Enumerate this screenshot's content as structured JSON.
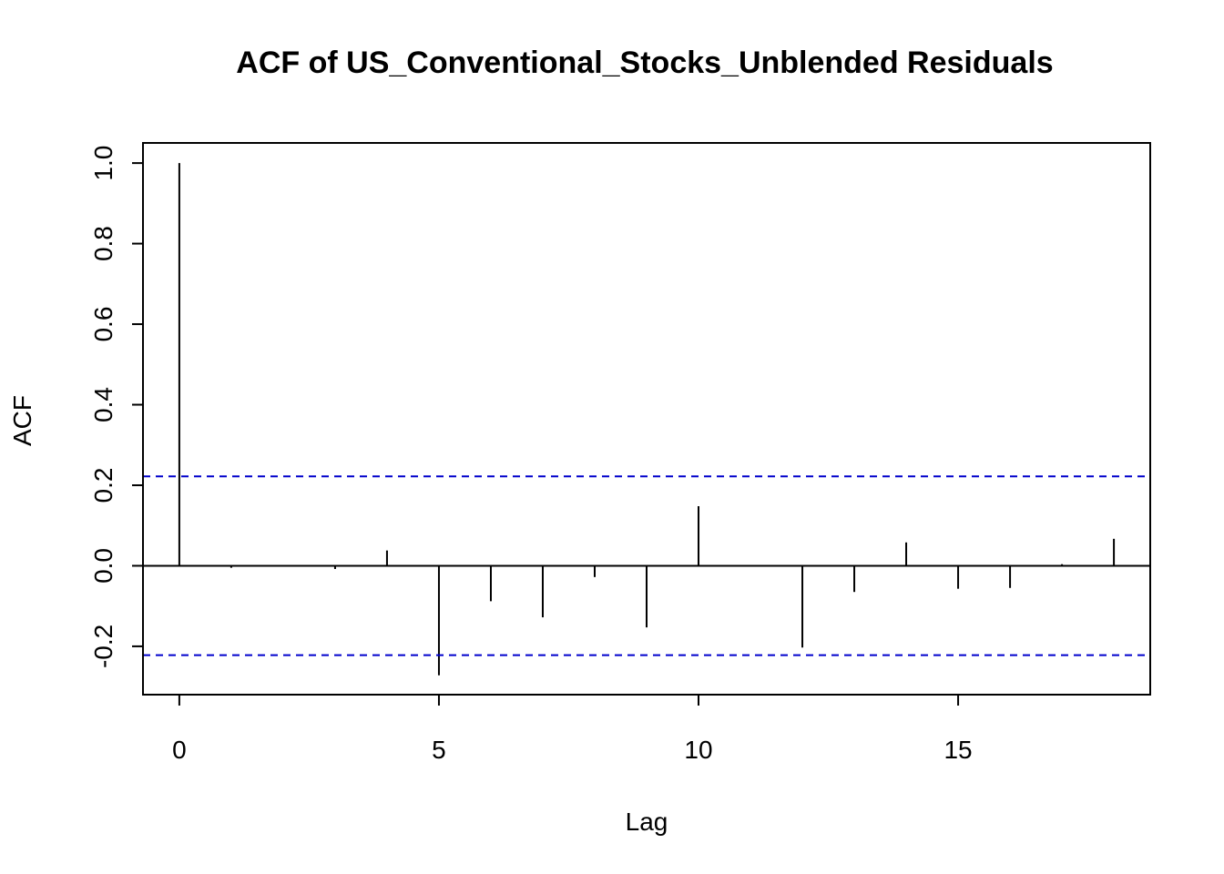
{
  "chart_data": {
    "type": "bar",
    "title": "ACF of US_Conventional_Stocks_Unblended Residuals",
    "xlabel": "Lag",
    "ylabel": "ACF",
    "x": [
      0,
      1,
      2,
      3,
      4,
      5,
      6,
      7,
      8,
      9,
      10,
      11,
      12,
      13,
      14,
      15,
      16,
      17,
      18
    ],
    "values": [
      1.0,
      -0.005,
      0.0,
      -0.008,
      0.038,
      -0.272,
      -0.088,
      -0.128,
      -0.028,
      -0.153,
      0.148,
      0.0,
      -0.203,
      -0.065,
      0.058,
      -0.057,
      -0.055,
      0.004,
      0.067
    ],
    "confidence_bounds": [
      0.222,
      -0.222
    ],
    "xlim": [
      -0.7,
      18.7
    ],
    "ylim": [
      -0.32,
      1.05
    ],
    "x_ticks": [
      "0",
      "5",
      "10",
      "15"
    ],
    "y_ticks": [
      "-0.2",
      "0.0",
      "0.2",
      "0.4",
      "0.6",
      "0.8",
      "1.0"
    ],
    "bounds_color": "#0000cc",
    "bar_color": "#000000",
    "grid": false,
    "legend": "none"
  }
}
